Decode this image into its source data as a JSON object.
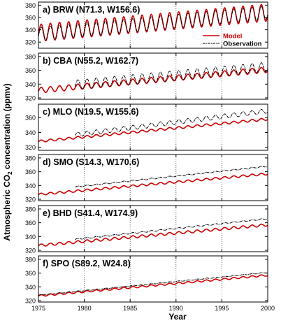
{
  "figure": {
    "ylabel": "Atmospheric CO",
    "ylabel_sub": "2",
    "ylabel_rest": " concentration (ppmv)",
    "xlabel": "Year",
    "legend": {
      "model": "Model",
      "observation": "Observation"
    }
  },
  "chart_data": [
    {
      "type": "line",
      "title": "a) BRW (N71.3, W156.6)",
      "xlim": [
        1975,
        2000
      ],
      "ylim": [
        310,
        385
      ],
      "yticks": [
        320,
        340,
        360,
        380
      ],
      "legend": "top-right",
      "series": [
        {
          "name": "Model",
          "color": "#cc0000",
          "start": 1975,
          "end": 2000,
          "base": [
            335,
            368
          ],
          "amp": 14,
          "clip_low": 318
        },
        {
          "name": "Observation",
          "color": "#000000",
          "start": 1975,
          "end": 2000,
          "base": [
            333,
            368
          ],
          "amp": 11
        }
      ]
    },
    {
      "type": "line",
      "title": "b) CBA (N55.2, W162.7)",
      "xlim": [
        1975,
        2000
      ],
      "ylim": [
        318,
        385
      ],
      "yticks": [
        320,
        340,
        360,
        380
      ],
      "series": [
        {
          "name": "Model",
          "color": "#cc0000",
          "start": 1975,
          "end": 2000,
          "base": [
            331,
            361
          ],
          "amp": 4
        },
        {
          "name": "Observation",
          "color": "#000000",
          "start": 1979,
          "end": 2000,
          "base": [
            339,
            365
          ],
          "amp": 7
        }
      ]
    },
    {
      "type": "line",
      "title": "c) MLO (N19.5, W155.6)",
      "xlim": [
        1975,
        2000
      ],
      "ylim": [
        316,
        378
      ],
      "yticks": [
        320,
        340,
        360
      ],
      "series": [
        {
          "name": "Model",
          "color": "#cc0000",
          "start": 1975,
          "end": 2000,
          "base": [
            328,
            358
          ],
          "amp": 1.5
        },
        {
          "name": "Observation",
          "color": "#000000",
          "start": 1979,
          "end": 2000,
          "base": [
            337,
            369
          ],
          "amp": 3
        }
      ]
    },
    {
      "type": "line",
      "title": "d) SMO (S14.3, W170.6)",
      "xlim": [
        1975,
        2000
      ],
      "ylim": [
        318,
        385
      ],
      "yticks": [
        320,
        340,
        360,
        380
      ],
      "series": [
        {
          "name": "Model",
          "color": "#cc0000",
          "start": 1975,
          "end": 2000,
          "base": [
            327,
            357
          ],
          "amp": 1.5
        },
        {
          "name": "Observation",
          "color": "#000000",
          "start": 1979,
          "end": 2000,
          "base": [
            338,
            368
          ],
          "amp": 0.8
        }
      ]
    },
    {
      "type": "line",
      "title": "e) BHD (S41.4, W174.9)",
      "xlim": [
        1975,
        2000
      ],
      "ylim": [
        318,
        385
      ],
      "yticks": [
        320,
        340,
        360,
        380
      ],
      "series": [
        {
          "name": "Model",
          "color": "#cc0000",
          "start": 1975,
          "end": 2000,
          "base": [
            327,
            357
          ],
          "amp": 1.8
        },
        {
          "name": "Observation",
          "color": "#000000",
          "start": 1979,
          "end": 2000,
          "base": [
            336,
            366
          ],
          "amp": 0.8
        }
      ]
    },
    {
      "type": "line",
      "title": "f) SPO (S89.2, W24.8)",
      "xlim": [
        1975,
        2000
      ],
      "ylim": [
        318,
        385
      ],
      "yticks": [
        320,
        340,
        360,
        380
      ],
      "xticks": [
        1975,
        1980,
        1985,
        1990,
        1995,
        2000
      ],
      "series": [
        {
          "name": "Model",
          "color": "#cc0000",
          "start": 1975,
          "end": 2000,
          "base": [
            327,
            357
          ],
          "amp": 1.2
        },
        {
          "name": "Observation",
          "color": "#000000",
          "start": 1975,
          "end": 2000,
          "base": [
            328,
            361
          ],
          "amp": 0.5
        }
      ]
    }
  ]
}
